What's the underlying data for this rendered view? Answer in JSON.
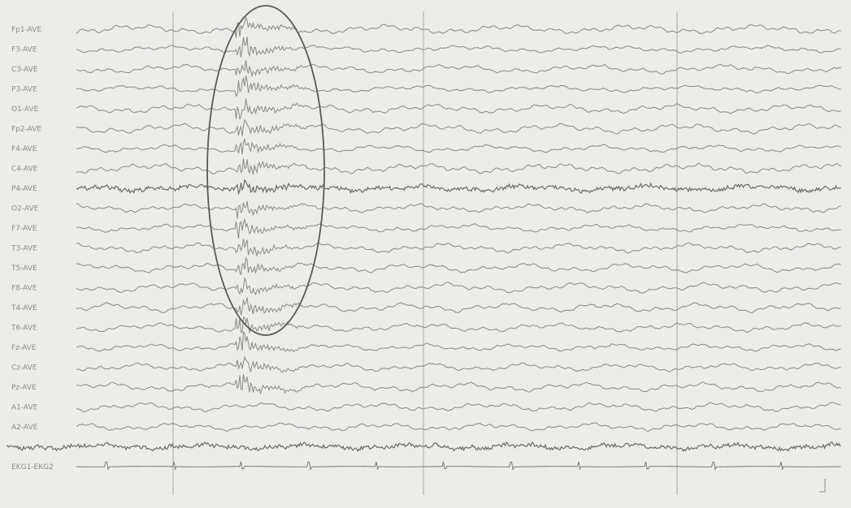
{
  "recording": {
    "channel_labels": [
      "Fp1-AVE",
      "F3-AVE",
      "C3-AVE",
      "P3-AVE",
      "O1-AVE",
      "Fp2-AVE",
      "F4-AVE",
      "C4-AVE",
      "P4-AVE",
      "O2-AVE",
      "F7-AVE",
      "T3-AVE",
      "T5-AVE",
      "F8-AVE",
      "T4-AVE",
      "T6-AVE",
      "Fz-AVE",
      "Cz-AVE",
      "Pz-AVE",
      "A1-AVE",
      "A2-AVE",
      "",
      "EKG1-EKG2"
    ],
    "highlight": "epileptiform discharge region (encircled)",
    "colors": {
      "background": "#ececea",
      "trace": "#8c8c8a",
      "ellipse": "#5a5a58"
    }
  }
}
